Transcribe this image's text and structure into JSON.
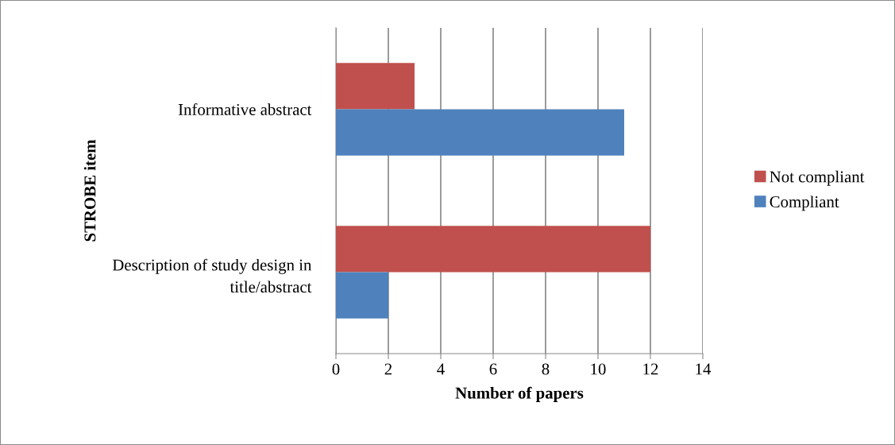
{
  "chart_data": {
    "type": "bar",
    "orientation": "horizontal",
    "xlabel": "Number of papers",
    "ylabel": "STROBE item",
    "categories": [
      "Informative abstract",
      "Description of study design in\ntitle/abstract"
    ],
    "series": [
      {
        "name": "Not compliant",
        "color": "#c0504d",
        "values": [
          3,
          12
        ]
      },
      {
        "name": "Compliant",
        "color": "#4f81bd",
        "values": [
          11,
          2
        ]
      }
    ],
    "xlim": [
      0,
      14
    ],
    "xticks": [
      0,
      2,
      4,
      6,
      8,
      10,
      12,
      14
    ],
    "grid": "x",
    "legend": "right"
  }
}
